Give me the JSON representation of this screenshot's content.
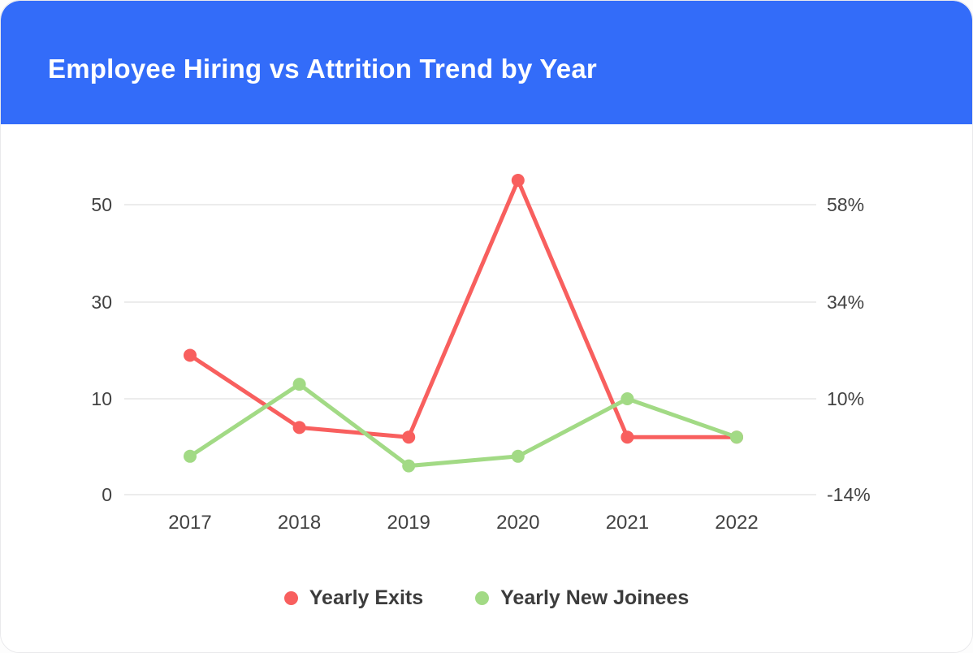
{
  "header": {
    "title": "Employee Hiring vs Attrition Trend by Year"
  },
  "colors": {
    "header_bg": "#336CF9",
    "card_bg": "#FFFFFF",
    "grid_line": "#ECECEC",
    "axis_text": "#424242",
    "legend_text": "#3C3C3C",
    "title_text": "#FFFFFF",
    "exits_line": "#F85F5E",
    "joinees_line": "#A2DA85"
  },
  "chart_data": {
    "type": "line",
    "title": "Employee Hiring vs Attrition Trend by Year",
    "categories": [
      "2017",
      "2018",
      "2019",
      "2020",
      "2021",
      "2022"
    ],
    "series": [
      {
        "name": "Yearly Exits",
        "color": "#F85F5E",
        "values": [
          19,
          7,
          6,
          55,
          6,
          6
        ]
      },
      {
        "name": "Yearly New Joinees",
        "color": "#A2DA85",
        "values": [
          4,
          13,
          3,
          4,
          10,
          6
        ]
      }
    ],
    "left_axis": {
      "tick_labels": [
        "0",
        "10",
        "30",
        "50"
      ],
      "tick_values": [
        0,
        10,
        30,
        50
      ]
    },
    "right_axis": {
      "tick_labels": [
        "-14%",
        "10%",
        "34%",
        "58%"
      ]
    },
    "grid": "horizontal-only",
    "marker": "circle",
    "legend_position": "bottom"
  }
}
